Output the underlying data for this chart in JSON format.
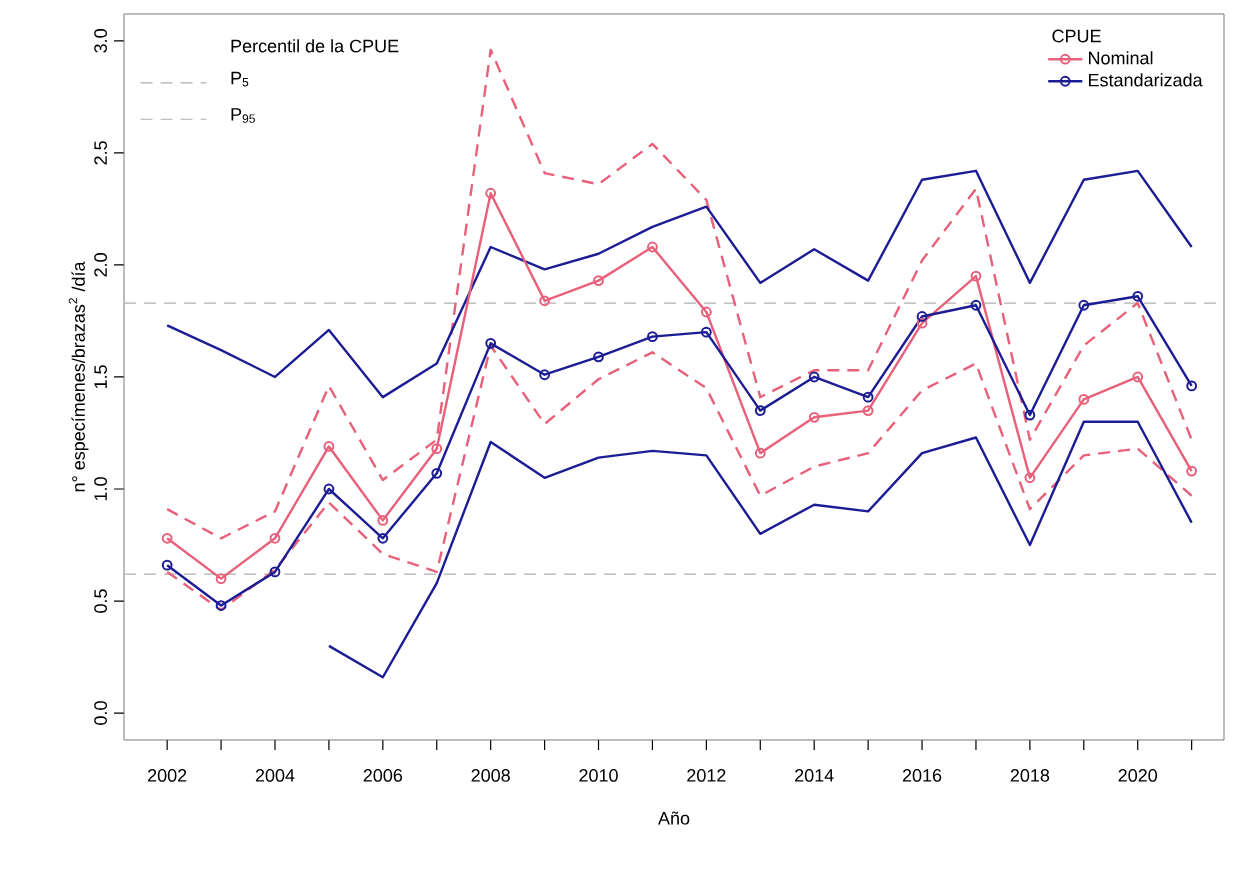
{
  "chart_data": {
    "type": "line",
    "xlabel": "Año",
    "ylabel": "n° especímenes/brazas$^{2}$ /día",
    "legend_title": "CPUE",
    "annotations": [
      "Percentil de la CPUE"
    ],
    "x": [
      2002,
      2003,
      2004,
      2005,
      2006,
      2007,
      2008,
      2009,
      2010,
      2011,
      2012,
      2013,
      2014,
      2015,
      2016,
      2017,
      2018,
      2019,
      2020,
      2021
    ],
    "series": [
      {
        "color": "#e8607a",
        "line_style": "dashed",
        "marker": "none",
        "values": [
          0.63,
          0.46,
          0.64,
          0.94,
          0.71,
          0.63,
          1.64,
          1.29,
          1.49,
          1.61,
          1.45,
          0.97,
          1.1,
          1.16,
          1.44,
          1.56,
          0.91,
          1.15,
          1.18,
          0.97
        ]
      },
      {
        "color": "#e8607a",
        "line_style": "dashed",
        "marker": "none",
        "values": [
          0.91,
          0.78,
          0.9,
          1.46,
          1.04,
          1.22,
          2.96,
          2.41,
          2.36,
          2.54,
          2.29,
          1.41,
          1.53,
          1.53,
          2.02,
          2.34,
          1.22,
          1.64,
          1.83,
          1.22
        ]
      },
      {
        "color": "#1c1c94",
        "line_style": "solid",
        "marker": "none",
        "values": [
          null,
          null,
          null,
          0.3,
          0.16,
          0.58,
          1.21,
          1.05,
          1.14,
          1.17,
          1.15,
          0.8,
          0.93,
          0.9,
          1.16,
          1.23,
          0.75,
          1.3,
          1.3,
          0.85
        ]
      },
      {
        "color": "#1c1c94",
        "line_style": "solid",
        "marker": "none",
        "values": [
          1.73,
          1.62,
          1.5,
          1.71,
          1.41,
          1.56,
          2.08,
          1.98,
          2.05,
          2.17,
          2.26,
          1.92,
          2.07,
          1.93,
          2.38,
          2.42,
          1.92,
          2.38,
          2.42,
          2.08
        ]
      },
      {
        "name": "Nominal",
        "color": "#e8607a",
        "line_style": "solid",
        "values": [
          0.78,
          0.6,
          0.78,
          1.19,
          0.86,
          1.18,
          2.32,
          1.84,
          1.93,
          2.08,
          1.79,
          1.16,
          1.32,
          1.35,
          1.74,
          1.95,
          1.05,
          1.4,
          1.5,
          1.08
        ]
      },
      {
        "name": "Estandarizada",
        "color": "#1c1c94",
        "line_style": "solid",
        "values": [
          0.66,
          0.48,
          0.63,
          1.0,
          0.78,
          1.07,
          1.65,
          1.51,
          1.59,
          1.68,
          1.7,
          1.35,
          1.5,
          1.41,
          1.77,
          1.82,
          1.33,
          1.82,
          1.86,
          1.46
        ]
      }
    ],
    "ref_lines": [
      {
        "axis": "y",
        "value": 0.62,
        "label": "P$_{5}$",
        "color": "#b0b0b0",
        "line_style": "dashed"
      },
      {
        "axis": "y",
        "value": 1.83,
        "label": "P$_{95}$",
        "color": "#b0b0b0",
        "line_style": "dashed"
      }
    ],
    "xlim": [
      2001.2,
      2021.6
    ],
    "xticks": [
      2002,
      {
        "value": 2003,
        "label": null
      },
      2004,
      {
        "value": 2005,
        "label": null
      },
      2006,
      {
        "value": 2007,
        "label": null
      },
      2008,
      {
        "value": 2009,
        "label": null
      },
      2010,
      {
        "value": 2011,
        "label": null
      },
      2012,
      {
        "value": 2013,
        "label": null
      },
      2014,
      {
        "value": 2015,
        "label": null
      },
      2016,
      {
        "value": 2017,
        "label": null
      },
      2018,
      {
        "value": 2019,
        "label": null
      },
      2020,
      {
        "value": 2021,
        "label": null
      }
    ],
    "ylim": [
      -0.12,
      3.12
    ],
    "yticks": [
      {
        "value": 0,
        "label": "0.0"
      },
      {
        "value": 0.5,
        "label": "0.5"
      },
      {
        "value": 1,
        "label": "1.0"
      },
      {
        "value": 1.5,
        "label": "1.5"
      },
      {
        "value": 2,
        "label": "2.0"
      },
      {
        "value": 2.5,
        "label": "2.5"
      },
      {
        "value": 3,
        "label": "3.0"
      }
    ],
    "marker": "circle",
    "grid": false,
    "legend": "top right"
  }
}
